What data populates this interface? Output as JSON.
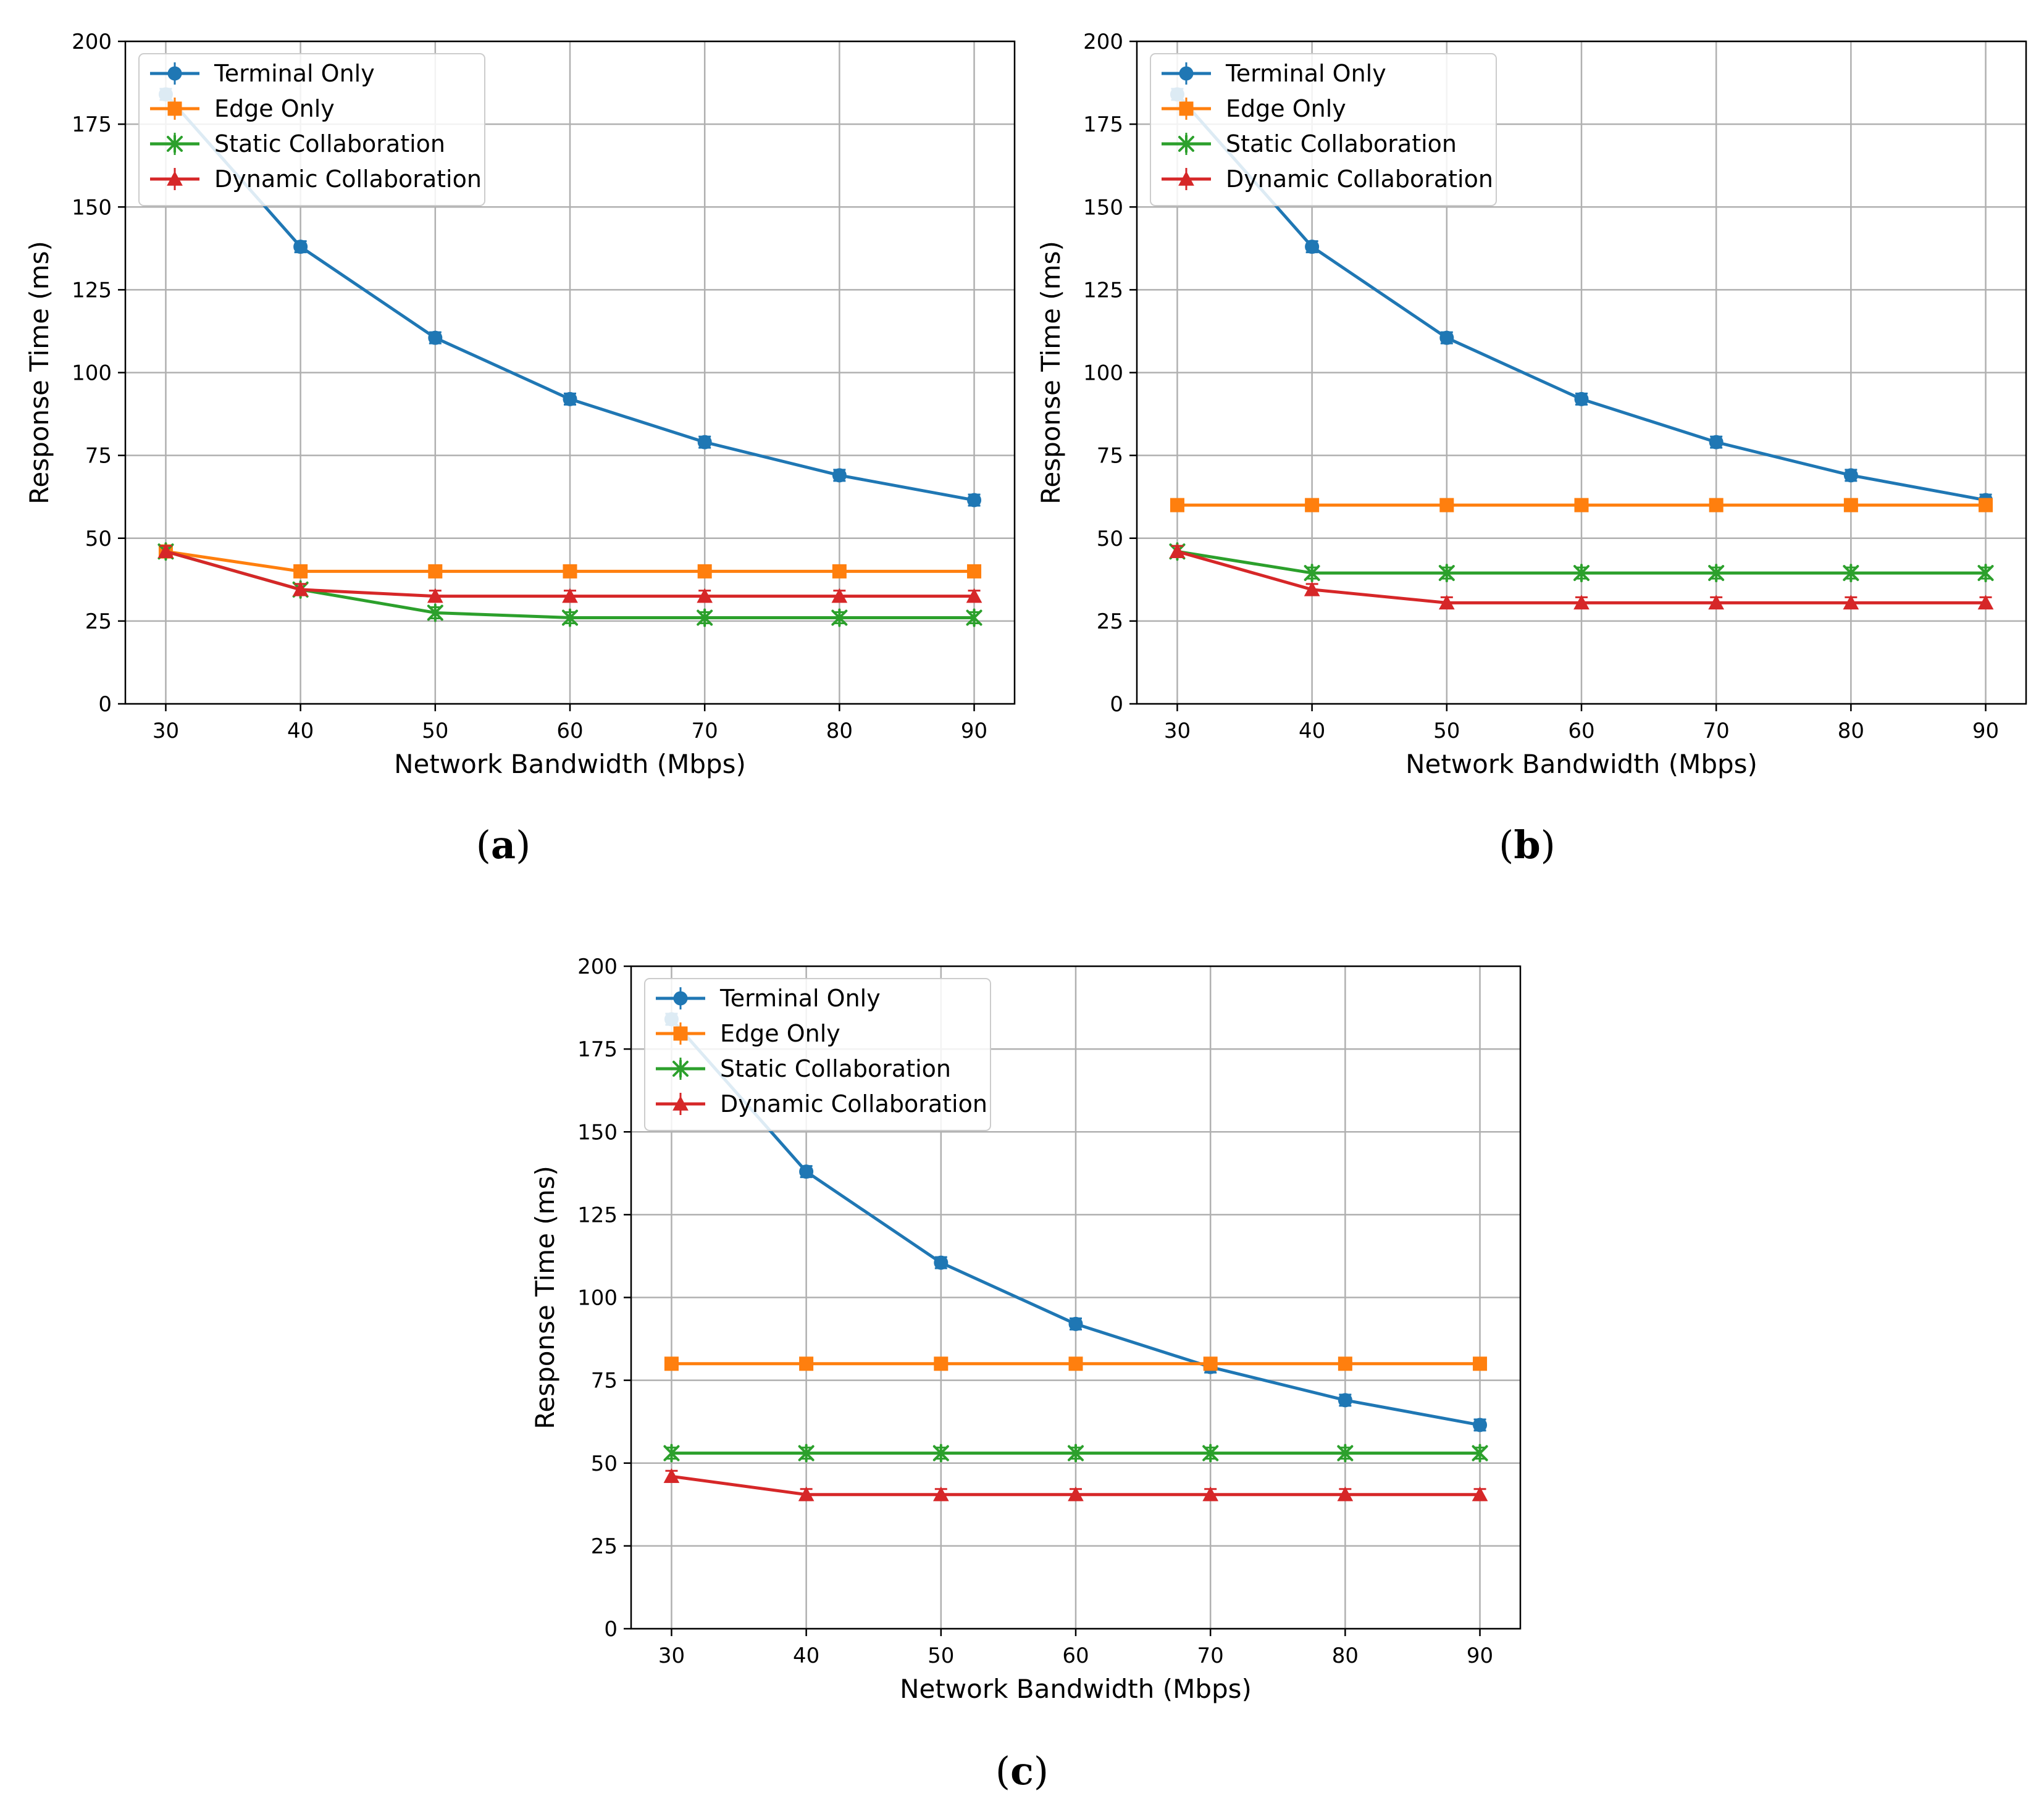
{
  "legend_position": "upper-left",
  "chart_data": [
    {
      "type": "line",
      "panel": "(a)",
      "panel_letter": "a",
      "xlabel": "Network Bandwidth (Mbps)",
      "ylabel": "Response Time (ms)",
      "xlim": [
        27,
        93
      ],
      "ylim": [
        0,
        200
      ],
      "xticks": [
        30,
        40,
        50,
        60,
        70,
        80,
        90
      ],
      "yticks": [
        0,
        25,
        50,
        75,
        100,
        125,
        150,
        175,
        200
      ],
      "grid": true,
      "x": [
        30,
        40,
        50,
        60,
        70,
        80,
        90
      ],
      "series": [
        {
          "name": "Terminal Only",
          "color": "#1f77b4",
          "marker": "circle",
          "values": [
            184,
            138,
            110.5,
            92,
            79,
            69,
            61.5
          ]
        },
        {
          "name": "Edge Only",
          "color": "#ff7f0e",
          "marker": "square",
          "values": [
            46,
            40,
            40,
            40,
            40,
            40,
            40
          ]
        },
        {
          "name": "Static Collaboration",
          "color": "#2ca02c",
          "marker": "x-star",
          "values": [
            46,
            34.5,
            27.5,
            26,
            26,
            26,
            26
          ]
        },
        {
          "name": "Dynamic Collaboration",
          "color": "#d62728",
          "marker": "triangle",
          "values": [
            46,
            34.5,
            32.5,
            32.5,
            32.5,
            32.5,
            32.5
          ]
        }
      ]
    },
    {
      "type": "line",
      "panel": "(b)",
      "panel_letter": "b",
      "xlabel": "Network Bandwidth (Mbps)",
      "ylabel": "Response Time (ms)",
      "xlim": [
        27,
        93
      ],
      "ylim": [
        0,
        200
      ],
      "xticks": [
        30,
        40,
        50,
        60,
        70,
        80,
        90
      ],
      "yticks": [
        0,
        25,
        50,
        75,
        100,
        125,
        150,
        175,
        200
      ],
      "grid": true,
      "x": [
        30,
        40,
        50,
        60,
        70,
        80,
        90
      ],
      "series": [
        {
          "name": "Terminal Only",
          "color": "#1f77b4",
          "marker": "circle",
          "values": [
            184,
            138,
            110.5,
            92,
            79,
            69,
            61.5
          ]
        },
        {
          "name": "Edge Only",
          "color": "#ff7f0e",
          "marker": "square",
          "values": [
            60,
            60,
            60,
            60,
            60,
            60,
            60
          ]
        },
        {
          "name": "Static Collaboration",
          "color": "#2ca02c",
          "marker": "x-star",
          "values": [
            46,
            39.5,
            39.5,
            39.5,
            39.5,
            39.5,
            39.5
          ]
        },
        {
          "name": "Dynamic Collaboration",
          "color": "#d62728",
          "marker": "triangle",
          "values": [
            46,
            34.5,
            30.5,
            30.5,
            30.5,
            30.5,
            30.5
          ]
        }
      ]
    },
    {
      "type": "line",
      "panel": "(c)",
      "panel_letter": "c",
      "xlabel": "Network Bandwidth (Mbps)",
      "ylabel": "Response Time (ms)",
      "xlim": [
        27,
        93
      ],
      "ylim": [
        0,
        200
      ],
      "xticks": [
        30,
        40,
        50,
        60,
        70,
        80,
        90
      ],
      "yticks": [
        0,
        25,
        50,
        75,
        100,
        125,
        150,
        175,
        200
      ],
      "grid": true,
      "x": [
        30,
        40,
        50,
        60,
        70,
        80,
        90
      ],
      "series": [
        {
          "name": "Terminal Only",
          "color": "#1f77b4",
          "marker": "circle",
          "values": [
            184,
            138,
            110.5,
            92,
            79,
            69,
            61.5
          ]
        },
        {
          "name": "Edge Only",
          "color": "#ff7f0e",
          "marker": "square",
          "values": [
            80,
            80,
            80,
            80,
            80,
            80,
            80
          ]
        },
        {
          "name": "Static Collaboration",
          "color": "#2ca02c",
          "marker": "x-star",
          "values": [
            53,
            53,
            53,
            53,
            53,
            53,
            53
          ]
        },
        {
          "name": "Dynamic Collaboration",
          "color": "#d62728",
          "marker": "triangle",
          "values": [
            46,
            40.5,
            40.5,
            40.5,
            40.5,
            40.5,
            40.5
          ]
        }
      ]
    }
  ]
}
